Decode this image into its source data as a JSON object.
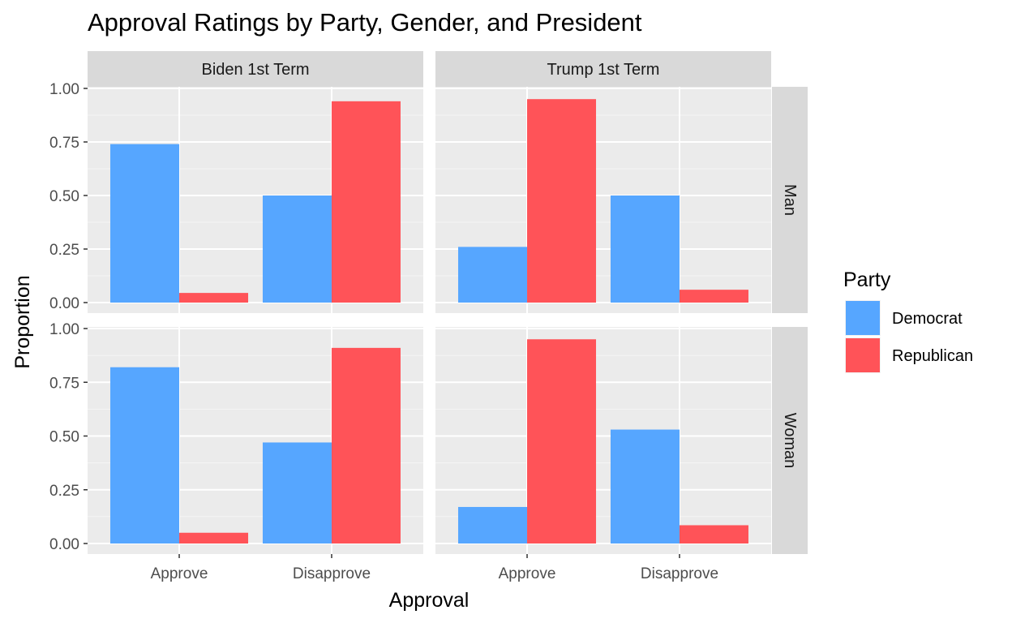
{
  "chart_data": {
    "type": "bar",
    "title": "Approval Ratings by Party, Gender, and President",
    "xlabel": "Approval",
    "ylabel": "Proportion",
    "categories": [
      "Approve",
      "Disapprove"
    ],
    "ylim": [
      0,
      1.05
    ],
    "y_ticks": [
      "0.00",
      "0.25",
      "0.50",
      "0.75",
      "1.00"
    ],
    "y_tick_values": [
      0,
      0.25,
      0.5,
      0.75,
      1.0
    ],
    "grid": true,
    "legend": {
      "title": "Party",
      "position": "right",
      "entries": [
        {
          "name": "Democrat",
          "color": "#56A6FF"
        },
        {
          "name": "Republican",
          "color": "#FF5358"
        }
      ]
    },
    "facet_cols": [
      "Biden 1st Term",
      "Trump 1st Term"
    ],
    "facet_rows": [
      "Man",
      "Woman"
    ],
    "panels": [
      {
        "col": "Biden 1st Term",
        "row": "Man",
        "series": [
          {
            "name": "Democrat",
            "values": [
              0.74,
              0.5
            ]
          },
          {
            "name": "Republican",
            "values": [
              0.045,
              0.94
            ]
          }
        ]
      },
      {
        "col": "Trump 1st Term",
        "row": "Man",
        "series": [
          {
            "name": "Democrat",
            "values": [
              0.26,
              0.5
            ]
          },
          {
            "name": "Republican",
            "values": [
              0.95,
              0.06
            ]
          }
        ]
      },
      {
        "col": "Biden 1st Term",
        "row": "Woman",
        "series": [
          {
            "name": "Democrat",
            "values": [
              0.82,
              0.47
            ]
          },
          {
            "name": "Republican",
            "values": [
              0.05,
              0.91
            ]
          }
        ]
      },
      {
        "col": "Trump 1st Term",
        "row": "Woman",
        "series": [
          {
            "name": "Democrat",
            "values": [
              0.17,
              0.53
            ]
          },
          {
            "name": "Republican",
            "values": [
              0.95,
              0.085
            ]
          }
        ]
      }
    ]
  },
  "colors": {
    "panel_bg": "#EBEBEB",
    "grid_major": "#FFFFFF",
    "grid_minor": "#F5F5F5",
    "strip_bg": "#D9D9D9"
  }
}
